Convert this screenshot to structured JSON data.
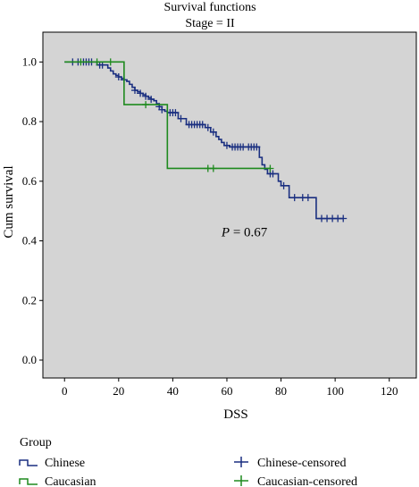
{
  "chart_data": {
    "type": "line",
    "title": "Survival functions",
    "subtitle": "Stage = II",
    "xlabel": "DSS",
    "ylabel": "Cum survival",
    "xlim": [
      -8,
      130
    ],
    "ylim": [
      -0.06,
      1.1
    ],
    "xticks": [
      0,
      20,
      40,
      60,
      80,
      100,
      120
    ],
    "yticks": [
      0.0,
      0.2,
      0.4,
      0.6,
      0.8,
      1.0
    ],
    "xtick_labels": [
      "0",
      "20",
      "40",
      "60",
      "80",
      "100",
      "120"
    ],
    "ytick_labels": [
      "0.0",
      "0.2",
      "0.4",
      "0.6",
      "0.8",
      "1.0"
    ],
    "grid": false,
    "plot_background": "#d4d4d4",
    "annotation": {
      "prefix": "P",
      "text": " = 0.67",
      "x": 58,
      "y": 0.43
    },
    "legend": {
      "title": "Group",
      "placement": "bottom",
      "items": [
        {
          "label": "Chinese",
          "kind": "line",
          "color": "#1a2f80"
        },
        {
          "label": "Chinese-censored",
          "kind": "cross",
          "color": "#1a2f80"
        },
        {
          "label": "Caucasian",
          "kind": "line",
          "color": "#1e8a1e"
        },
        {
          "label": "Caucasian-censored",
          "kind": "cross",
          "color": "#1e8a1e"
        }
      ]
    },
    "series": [
      {
        "name": "Chinese",
        "color": "#1a2f80",
        "steps": [
          [
            0,
            1.0
          ],
          [
            12,
            0.99
          ],
          [
            16,
            0.98
          ],
          [
            17,
            0.97
          ],
          [
            18,
            0.96
          ],
          [
            19,
            0.955
          ],
          [
            20,
            0.95
          ],
          [
            21,
            0.945
          ],
          [
            22,
            0.94
          ],
          [
            23,
            0.935
          ],
          [
            24,
            0.925
          ],
          [
            25,
            0.915
          ],
          [
            26,
            0.905
          ],
          [
            27,
            0.9
          ],
          [
            28,
            0.895
          ],
          [
            29,
            0.89
          ],
          [
            30,
            0.885
          ],
          [
            31,
            0.88
          ],
          [
            32,
            0.875
          ],
          [
            33,
            0.87
          ],
          [
            34,
            0.86
          ],
          [
            35,
            0.85
          ],
          [
            36,
            0.84
          ],
          [
            37,
            0.835
          ],
          [
            38,
            0.83
          ],
          [
            42,
            0.81
          ],
          [
            45,
            0.79
          ],
          [
            52,
            0.78
          ],
          [
            54,
            0.765
          ],
          [
            56,
            0.75
          ],
          [
            57,
            0.74
          ],
          [
            58,
            0.73
          ],
          [
            59,
            0.72
          ],
          [
            61,
            0.715
          ],
          [
            72,
            0.68
          ],
          [
            73,
            0.655
          ],
          [
            74,
            0.64
          ],
          [
            75,
            0.625
          ],
          [
            79,
            0.6
          ],
          [
            80,
            0.585
          ],
          [
            83,
            0.545
          ],
          [
            93,
            0.475
          ],
          [
            103,
            0.475
          ]
        ],
        "censored": [
          [
            3,
            1.0
          ],
          [
            5,
            1.0
          ],
          [
            7,
            0.995
          ],
          [
            8,
            0.995
          ],
          [
            9,
            0.995
          ],
          [
            10,
            0.995
          ],
          [
            13,
            0.99
          ],
          [
            14,
            0.99
          ],
          [
            20,
            0.95
          ],
          [
            22,
            0.94
          ],
          [
            26,
            0.905
          ],
          [
            28,
            0.895
          ],
          [
            30,
            0.885
          ],
          [
            32,
            0.875
          ],
          [
            35,
            0.85
          ],
          [
            36,
            0.84
          ],
          [
            39,
            0.83
          ],
          [
            40,
            0.83
          ],
          [
            41,
            0.83
          ],
          [
            43,
            0.81
          ],
          [
            46,
            0.79
          ],
          [
            47,
            0.79
          ],
          [
            48,
            0.79
          ],
          [
            49,
            0.79
          ],
          [
            50,
            0.79
          ],
          [
            51,
            0.79
          ],
          [
            53,
            0.78
          ],
          [
            55,
            0.765
          ],
          [
            60,
            0.72
          ],
          [
            62,
            0.715
          ],
          [
            63,
            0.715
          ],
          [
            64,
            0.715
          ],
          [
            65,
            0.715
          ],
          [
            66,
            0.715
          ],
          [
            68,
            0.715
          ],
          [
            69,
            0.715
          ],
          [
            70,
            0.715
          ],
          [
            71,
            0.715
          ],
          [
            76,
            0.625
          ],
          [
            77,
            0.625
          ],
          [
            81,
            0.585
          ],
          [
            85,
            0.545
          ],
          [
            88,
            0.545
          ],
          [
            90,
            0.545
          ],
          [
            95,
            0.475
          ],
          [
            97,
            0.475
          ],
          [
            99,
            0.475
          ],
          [
            101,
            0.475
          ],
          [
            103,
            0.475
          ]
        ]
      },
      {
        "name": "Caucasian",
        "color": "#1e8a1e",
        "steps": [
          [
            0,
            1.0
          ],
          [
            22,
            0.857
          ],
          [
            38,
            0.643
          ],
          [
            76,
            0.643
          ]
        ],
        "censored": [
          [
            6,
            1.0
          ],
          [
            12,
            1.0
          ],
          [
            17,
            1.0
          ],
          [
            30,
            0.857
          ],
          [
            53,
            0.643
          ],
          [
            55,
            0.643
          ],
          [
            76,
            0.643
          ]
        ]
      }
    ]
  }
}
